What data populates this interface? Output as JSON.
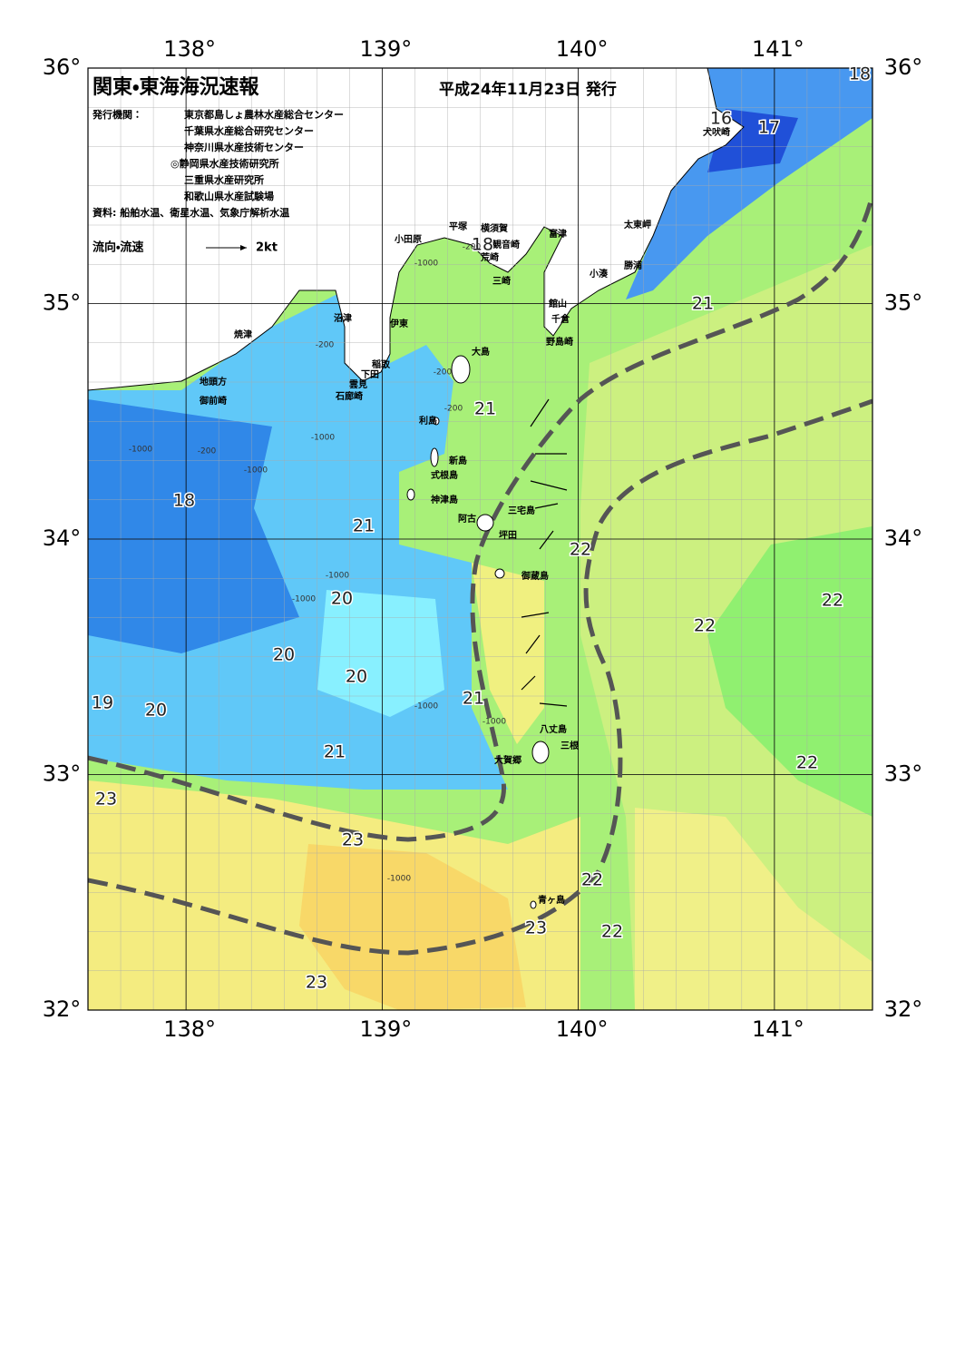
{
  "header": {
    "title": "関東・東海海況速報",
    "date": "平成24年11月23日 発行",
    "publisher_label": "発行機関：",
    "publishers": [
      "東京都島しょ農林水産総合センター",
      "千葉県水産総合研究センター",
      "神奈川県水産技術センター",
      "◎静岡県水産技術研究所",
      "三重県水産研究所",
      "和歌山県水産試験場"
    ],
    "source": "資料: 船舶水温、衛星水温、気象庁解析水温",
    "legend_label": "流向・流速",
    "legend_scale": "2kt"
  },
  "map": {
    "lon_ticks": [
      {
        "value": 138,
        "label": "138°"
      },
      {
        "value": 139,
        "label": "139°"
      },
      {
        "value": 140,
        "label": "140°"
      },
      {
        "value": 141,
        "label": "141°"
      }
    ],
    "lat_ticks": [
      {
        "value": 32,
        "label": "32°"
      },
      {
        "value": 33,
        "label": "33°"
      },
      {
        "value": 34,
        "label": "34°"
      },
      {
        "value": 35,
        "label": "35°"
      },
      {
        "value": 36,
        "label": "36°"
      }
    ],
    "lonlim": [
      137.5,
      141.5
    ],
    "latlim": [
      32,
      36
    ],
    "place_names": [
      "小田原",
      "平塚",
      "横須賀",
      "観音崎",
      "荒崎",
      "三崎",
      "富津",
      "館山",
      "千倉",
      "野島崎",
      "太東岬",
      "小湊",
      "勝浦",
      "犬吠崎",
      "沼津",
      "伊東",
      "焼津",
      "稲取",
      "下田",
      "雲見",
      "石廊崎",
      "地頭方",
      "御前崎",
      "大島",
      "利島",
      "新島",
      "式根島",
      "神津島",
      "三宅島",
      "阿古",
      "坪田",
      "御蔵島",
      "八丈島",
      "三根",
      "大賀郷",
      "青ヶ島"
    ],
    "temperature_labels": [
      "18",
      "16",
      "17",
      "18",
      "21",
      "21",
      "18",
      "21",
      "22",
      "20",
      "22",
      "22",
      "20",
      "20",
      "21",
      "19",
      "20",
      "21",
      "22",
      "23",
      "23",
      "22",
      "23",
      "22",
      "23"
    ],
    "depth_labels": [
      "-1000",
      "-200",
      "-1000",
      "-200",
      "-1000",
      "-200",
      "-1000",
      "-1000",
      "-1000",
      "-200",
      "-1000",
      "-200",
      "-1000",
      "-1000"
    ]
  }
}
